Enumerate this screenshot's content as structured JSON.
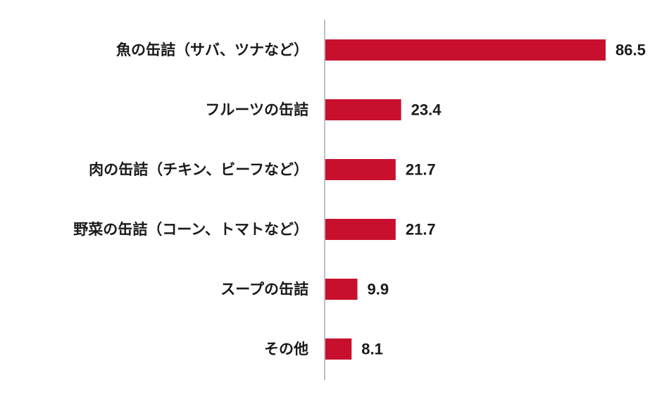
{
  "chart_data": {
    "type": "bar",
    "orientation": "horizontal",
    "categories": [
      "魚の缶詰（サバ、ツナなど）",
      "フルーツの缶詰",
      "肉の缶詰（チキン、ビーフなど）",
      "野菜の缶詰（コーン、トマトなど）",
      "スープの缶詰",
      "その他"
    ],
    "values": [
      86.5,
      23.4,
      21.7,
      21.7,
      9.9,
      8.1
    ],
    "value_labels": [
      "86.5",
      "23.4",
      "21.7",
      "21.7",
      "9.9",
      "8.1"
    ],
    "xlim": [
      0,
      86.5
    ],
    "grid": false,
    "legend": "none",
    "colors": {
      "bar": "#c8102e",
      "axis": "#aaaaaa",
      "text": "#1a1a1a"
    }
  }
}
